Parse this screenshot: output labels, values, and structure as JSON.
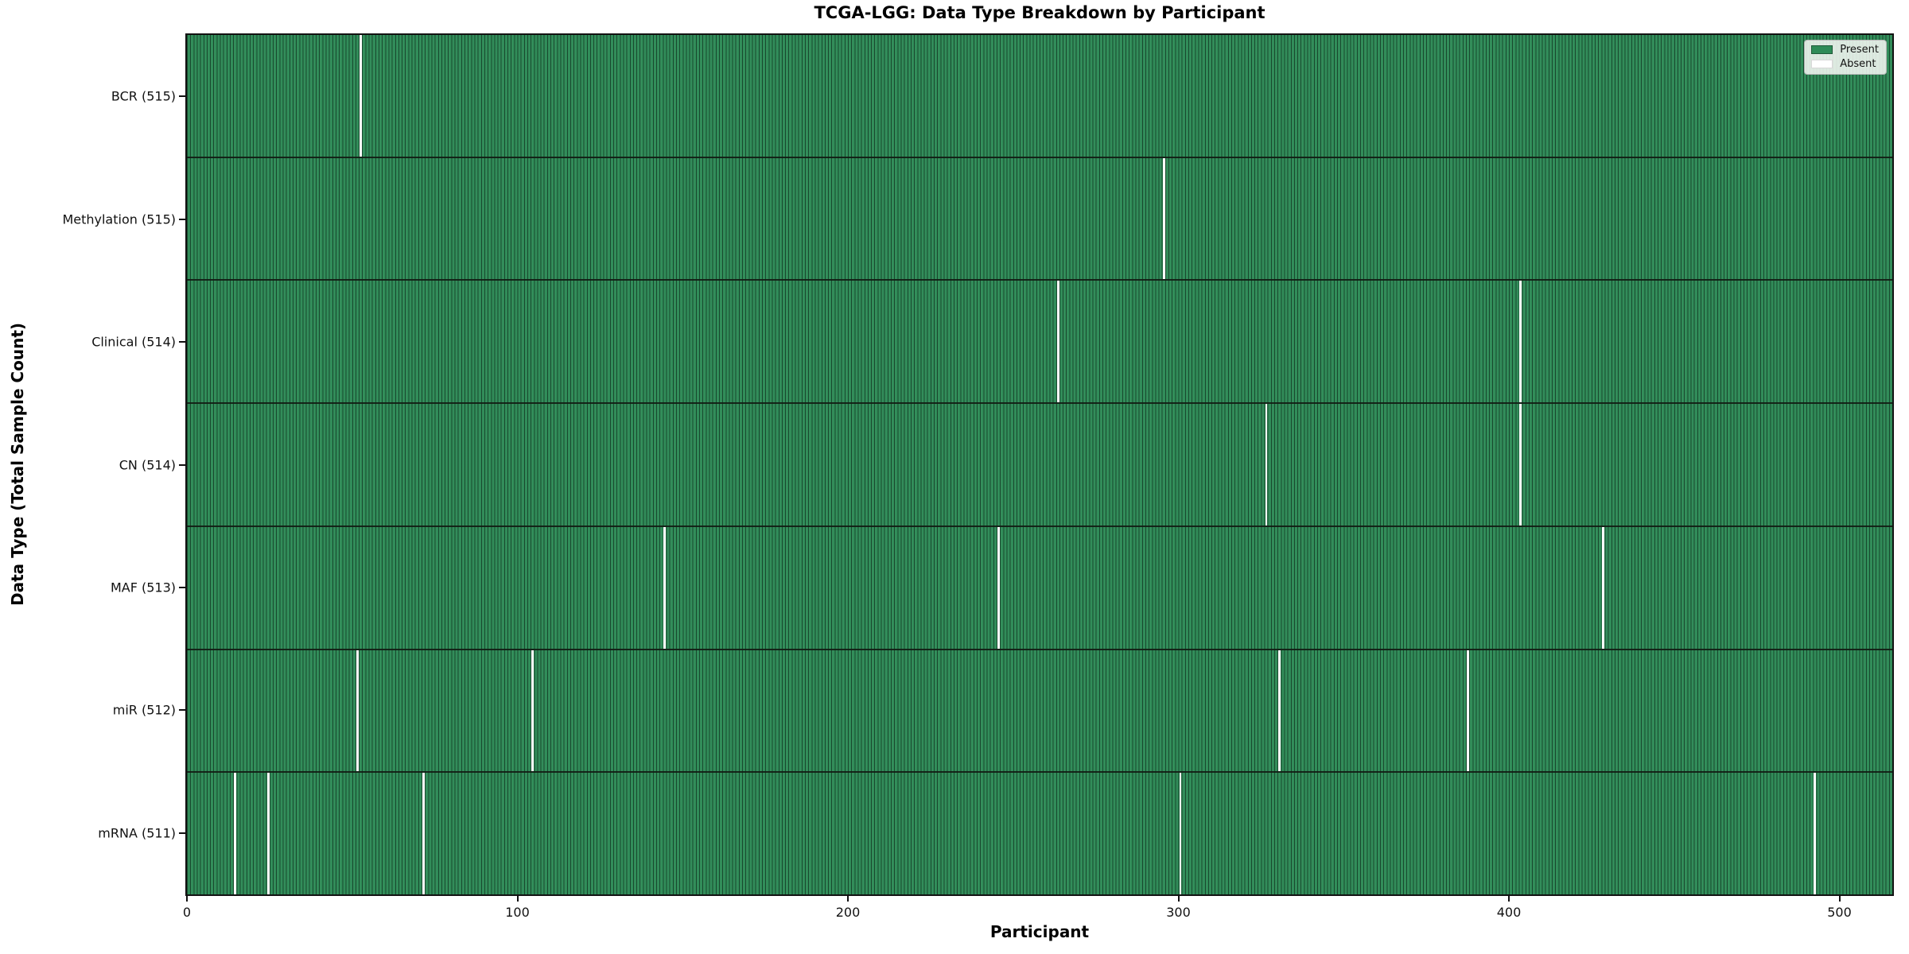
{
  "title": "TCGA-LGG: Data Type Breakdown by Participant",
  "colors": {
    "present": "#2E8B57",
    "absent": "#FFFFFF",
    "hatch_line": "rgba(0,0,0,0.48)",
    "spine": "#121212",
    "text": "#111111"
  },
  "legend": {
    "present_label": "Present",
    "absent_label": "Absent",
    "position": "upper right"
  },
  "chart_data": {
    "type": "heatmap",
    "title": "TCGA-LGG: Data Type Breakdown by Participant",
    "xlabel": "Participant",
    "ylabel": "Data Type (Total Sample Count)",
    "n_participants": 516,
    "x_range": [
      0,
      516
    ],
    "x_ticks": [
      0,
      100,
      200,
      300,
      400,
      500
    ],
    "grid": false,
    "legend_entries": [
      {
        "label": "Present",
        "color": "#2E8B57"
      },
      {
        "label": "Absent",
        "color": "#FFFFFF"
      }
    ],
    "rows": [
      {
        "label": "BCR (515)",
        "data_type": "BCR",
        "present_count": 515,
        "absent_participants": [
          52
        ]
      },
      {
        "label": "Methylation (515)",
        "data_type": "Methylation",
        "present_count": 515,
        "absent_participants": [
          295
        ]
      },
      {
        "label": "Clinical (514)",
        "data_type": "Clinical",
        "present_count": 514,
        "absent_participants": [
          263,
          403
        ]
      },
      {
        "label": "CN (514)",
        "data_type": "CN",
        "present_count": 514,
        "absent_participants": [
          326,
          403
        ]
      },
      {
        "label": "MAF (513)",
        "data_type": "MAF",
        "present_count": 513,
        "absent_participants": [
          144,
          245,
          428
        ]
      },
      {
        "label": "miR (512)",
        "data_type": "miR",
        "present_count": 512,
        "absent_participants": [
          51,
          104,
          330,
          387
        ]
      },
      {
        "label": "mRNA (511)",
        "data_type": "mRNA",
        "present_count": 511,
        "absent_participants": [
          14,
          24,
          71,
          300,
          492
        ]
      }
    ]
  }
}
